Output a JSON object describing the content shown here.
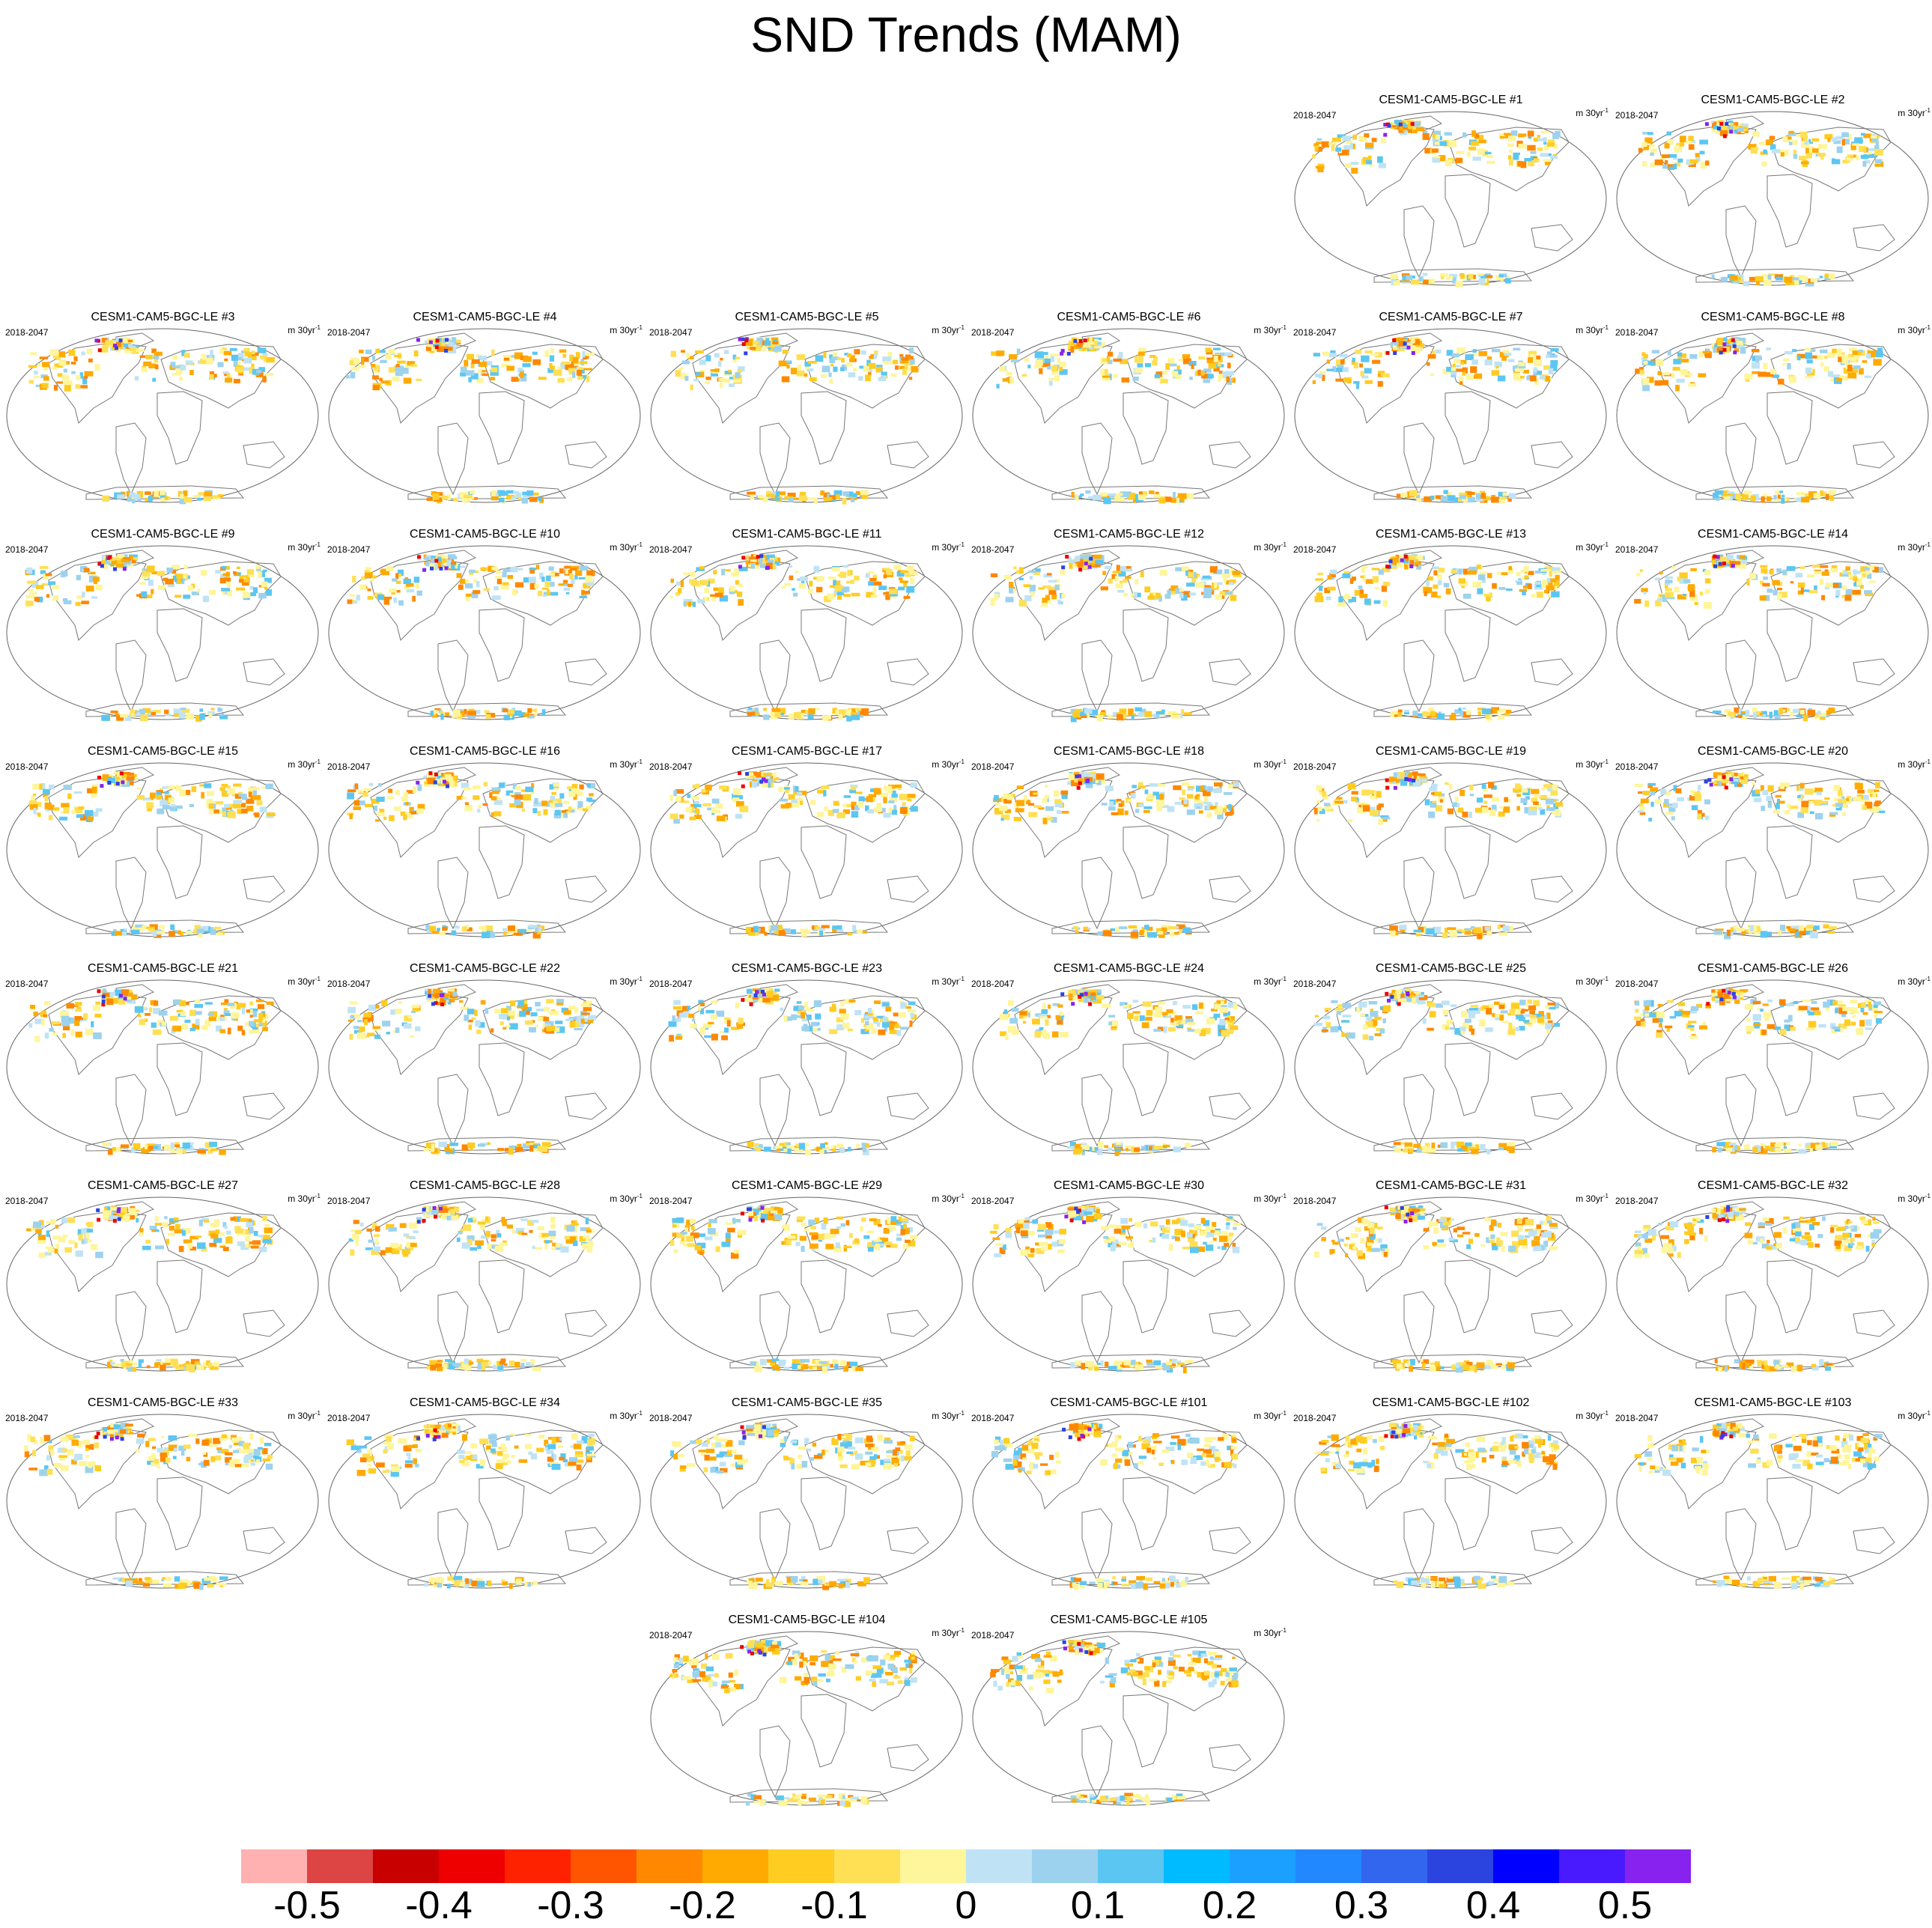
{
  "title": "SND Trends (MAM)",
  "period": "2018-2047",
  "units_base": "m 30yr",
  "units_exp": "-1",
  "panels": [
    {
      "label": "CESM1-CAM5-BGC-LE #1"
    },
    {
      "label": "CESM1-CAM5-BGC-LE #2"
    },
    {
      "label": "CESM1-CAM5-BGC-LE #3"
    },
    {
      "label": "CESM1-CAM5-BGC-LE #4"
    },
    {
      "label": "CESM1-CAM5-BGC-LE #5"
    },
    {
      "label": "CESM1-CAM5-BGC-LE #6"
    },
    {
      "label": "CESM1-CAM5-BGC-LE #7"
    },
    {
      "label": "CESM1-CAM5-BGC-LE #8"
    },
    {
      "label": "CESM1-CAM5-BGC-LE #9"
    },
    {
      "label": "CESM1-CAM5-BGC-LE #10"
    },
    {
      "label": "CESM1-CAM5-BGC-LE #11"
    },
    {
      "label": "CESM1-CAM5-BGC-LE #12"
    },
    {
      "label": "CESM1-CAM5-BGC-LE #13"
    },
    {
      "label": "CESM1-CAM5-BGC-LE #14"
    },
    {
      "label": "CESM1-CAM5-BGC-LE #15"
    },
    {
      "label": "CESM1-CAM5-BGC-LE #16"
    },
    {
      "label": "CESM1-CAM5-BGC-LE #17"
    },
    {
      "label": "CESM1-CAM5-BGC-LE #18"
    },
    {
      "label": "CESM1-CAM5-BGC-LE #19"
    },
    {
      "label": "CESM1-CAM5-BGC-LE #20"
    },
    {
      "label": "CESM1-CAM5-BGC-LE #21"
    },
    {
      "label": "CESM1-CAM5-BGC-LE #22"
    },
    {
      "label": "CESM1-CAM5-BGC-LE #23"
    },
    {
      "label": "CESM1-CAM5-BGC-LE #24"
    },
    {
      "label": "CESM1-CAM5-BGC-LE #25"
    },
    {
      "label": "CESM1-CAM5-BGC-LE #26"
    },
    {
      "label": "CESM1-CAM5-BGC-LE #27"
    },
    {
      "label": "CESM1-CAM5-BGC-LE #28"
    },
    {
      "label": "CESM1-CAM5-BGC-LE #29"
    },
    {
      "label": "CESM1-CAM5-BGC-LE #30"
    },
    {
      "label": "CESM1-CAM5-BGC-LE #31"
    },
    {
      "label": "CESM1-CAM5-BGC-LE #32"
    },
    {
      "label": "CESM1-CAM5-BGC-LE #33"
    },
    {
      "label": "CESM1-CAM5-BGC-LE #34"
    },
    {
      "label": "CESM1-CAM5-BGC-LE #35"
    },
    {
      "label": "CESM1-CAM5-BGC-LE #101"
    },
    {
      "label": "CESM1-CAM5-BGC-LE #102"
    },
    {
      "label": "CESM1-CAM5-BGC-LE #103"
    },
    {
      "label": "CESM1-CAM5-BGC-LE #104"
    },
    {
      "label": "CESM1-CAM5-BGC-LE #105"
    }
  ],
  "colorbar": {
    "colors": [
      "#ffb0b0",
      "#dd4444",
      "#c80000",
      "#ee0000",
      "#ff2200",
      "#ff5500",
      "#ff8800",
      "#ffaa00",
      "#ffcc22",
      "#ffe055",
      "#fff59a",
      "#bfe3f5",
      "#9dd2ee",
      "#5cc6f2",
      "#00bbff",
      "#1ba0ff",
      "#2288ff",
      "#3366ee",
      "#2b44e0",
      "#0000ff",
      "#4a1aff",
      "#8822ee"
    ],
    "labels": [
      "-0.5",
      "-0.4",
      "-0.3",
      "-0.2",
      "-0.1",
      "0",
      "0.1",
      "0.2",
      "0.3",
      "0.4",
      "0.5"
    ]
  }
}
